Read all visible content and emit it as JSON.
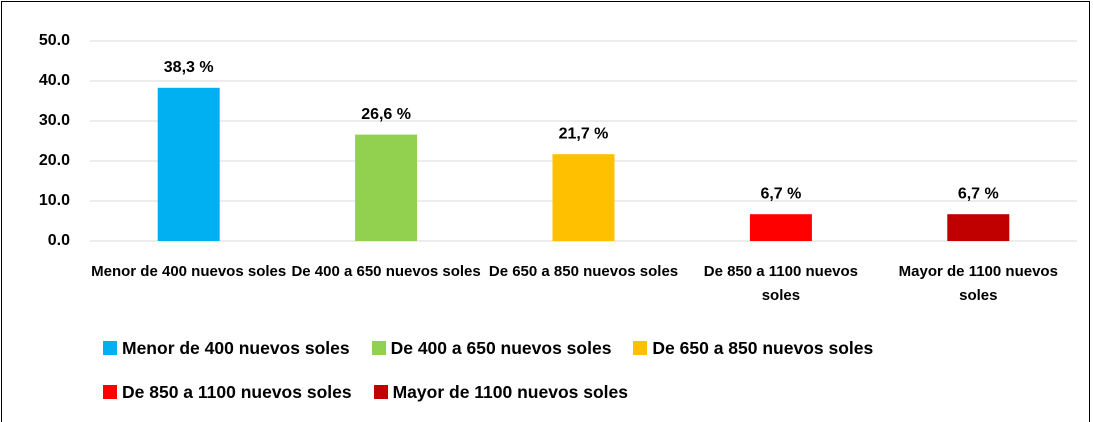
{
  "chart_data": {
    "type": "bar",
    "categories": [
      "Menor de 400 nuevos soles",
      "De 400 a 650 nuevos soles",
      "De 650 a 850 nuevos soles",
      "De 850 a 1100 nuevos soles",
      "Mayor de 1100 nuevos soles"
    ],
    "values": [
      38.3,
      26.6,
      21.7,
      6.7,
      6.7
    ],
    "value_labels": [
      "38,3 %",
      "26,6 %",
      "21,7 %",
      "6,7 %",
      "6,7 %"
    ],
    "colors": [
      "#00b0f0",
      "#92d050",
      "#ffc000",
      "#ff0000",
      "#c00000"
    ],
    "ylim": [
      0,
      50
    ],
    "yticks": [
      {
        "value": 0,
        "label": "0.0"
      },
      {
        "value": 10,
        "label": "10.0"
      },
      {
        "value": 20,
        "label": "20.0"
      },
      {
        "value": 30,
        "label": "30.0"
      },
      {
        "value": 40,
        "label": "40.0"
      },
      {
        "value": 50,
        "label": "50.0"
      }
    ],
    "grid": true,
    "legend": "bottom"
  }
}
